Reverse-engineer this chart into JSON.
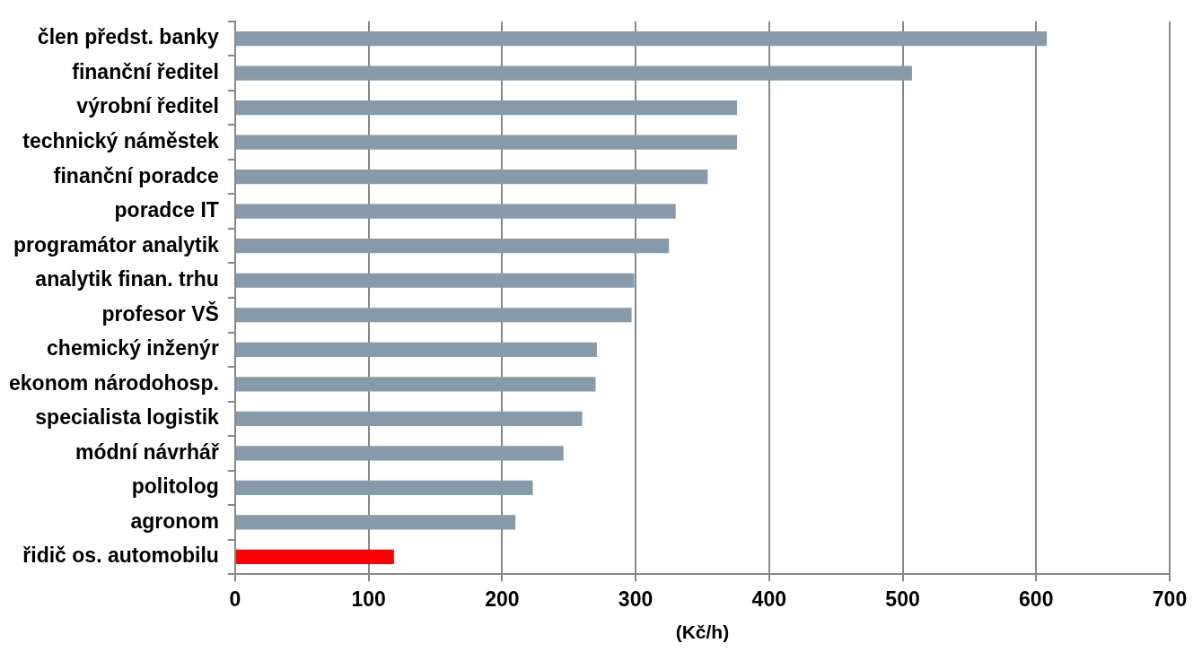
{
  "chart_data": {
    "type": "bar",
    "orientation": "horizontal",
    "xlabel": "(Kč/h)",
    "categories": [
      "člen předst. banky",
      "finanční ředitel",
      "výrobní ředitel",
      "technický náměstek",
      "finanční poradce",
      "poradce IT",
      "programátor analytik",
      "analytik finan. trhu",
      "profesor VŠ",
      "chemický inženýr",
      "ekonom národohosp.",
      "specialista logistik",
      "módní návrhář",
      "politolog",
      "agronom",
      "řidič os. automobilu"
    ],
    "values": [
      608,
      507,
      376,
      376,
      354,
      330,
      325,
      299,
      297,
      271,
      270,
      260,
      246,
      223,
      210,
      119
    ],
    "colors": [
      "#879aaa",
      "#879aaa",
      "#879aaa",
      "#879aaa",
      "#879aaa",
      "#879aaa",
      "#879aaa",
      "#879aaa",
      "#879aaa",
      "#879aaa",
      "#879aaa",
      "#879aaa",
      "#879aaa",
      "#879aaa",
      "#879aaa",
      "#ff0000"
    ],
    "xlim": [
      0,
      700
    ],
    "xticks": [
      0,
      100,
      200,
      300,
      400,
      500,
      600,
      700
    ],
    "grid": "x",
    "legend": false
  }
}
